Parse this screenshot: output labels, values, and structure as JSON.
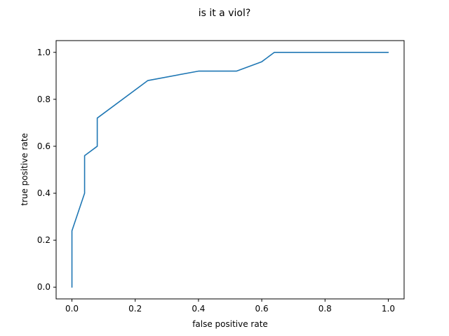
{
  "chart_data": {
    "type": "line",
    "title": "is it a viol?",
    "xlabel": "false positive rate",
    "ylabel": "true positive rate",
    "xlim": [
      -0.05,
      1.05
    ],
    "ylim": [
      -0.05,
      1.05
    ],
    "xticks": [
      0.0,
      0.2,
      0.4,
      0.6,
      0.8,
      1.0
    ],
    "xtick_labels": [
      "0.0",
      "0.2",
      "0.4",
      "0.6",
      "0.8",
      "1.0"
    ],
    "yticks": [
      0.0,
      0.2,
      0.4,
      0.6,
      0.8,
      1.0
    ],
    "ytick_labels": [
      "0.0",
      "0.2",
      "0.4",
      "0.6",
      "0.8",
      "1.0"
    ],
    "grid": false,
    "series": [
      {
        "color": "#1f77b4",
        "x": [
          0.0,
          0.0,
          0.04,
          0.04,
          0.08,
          0.08,
          0.24,
          0.4,
          0.52,
          0.6,
          0.64,
          1.0
        ],
        "y": [
          0.0,
          0.24,
          0.4,
          0.56,
          0.6,
          0.72,
          0.88,
          0.92,
          0.92,
          0.96,
          1.0,
          1.0
        ]
      }
    ]
  }
}
